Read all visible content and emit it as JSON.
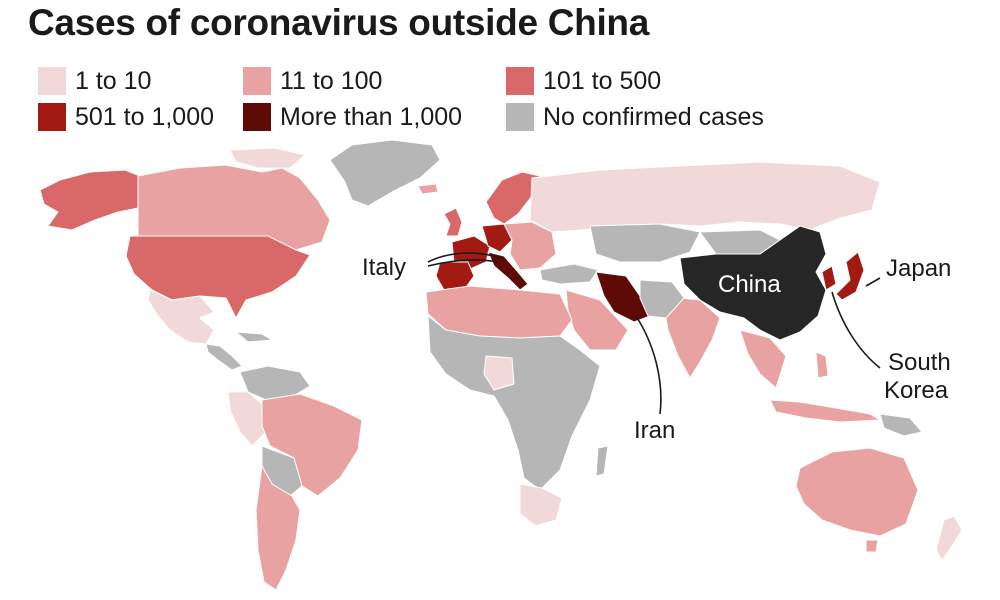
{
  "title": "Cases of coronavirus outside China",
  "legend": [
    {
      "id": "1-10",
      "label": "1 to 10",
      "color": "#f2d9d9"
    },
    {
      "id": "11-100",
      "label": "11 to 100",
      "color": "#e9a2a2"
    },
    {
      "id": "101-500",
      "label": "101 to 500",
      "color": "#d96868"
    },
    {
      "id": "501-1000",
      "label": "501 to 1,000",
      "color": "#a31a12"
    },
    {
      "id": "1000plus",
      "label": "More than 1,000",
      "color": "#5e0b06"
    },
    {
      "id": "none",
      "label": "No confirmed cases",
      "color": "#b6b6b6"
    }
  ],
  "labels": {
    "italy": "Italy",
    "china": "China",
    "japan": "Japan",
    "iran": "Iran",
    "south_korea_line1": "South",
    "south_korea_line2": "Korea"
  },
  "colors": {
    "china": "#262626"
  }
}
